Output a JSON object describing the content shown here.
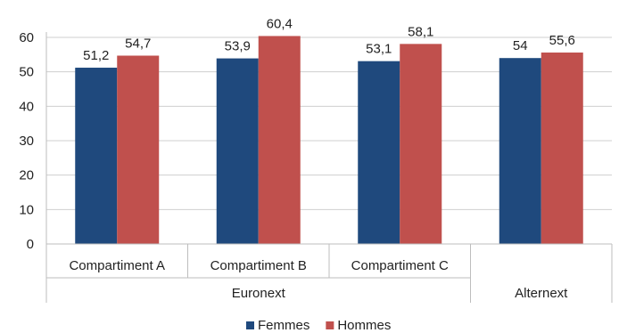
{
  "chart_data": {
    "type": "bar",
    "title": "",
    "xlabel": "",
    "ylabel": "",
    "ylim": [
      0,
      60
    ],
    "yticks": [
      0,
      10,
      20,
      30,
      40,
      50,
      60
    ],
    "grid": true,
    "legend_position": "bottom",
    "categories": [
      "Compartiment A",
      "Compartiment B",
      "Compartiment C",
      ""
    ],
    "groups": [
      {
        "label": "Euronext",
        "span": [
          0,
          2
        ]
      },
      {
        "label": "Alternext",
        "span": [
          3,
          3
        ]
      }
    ],
    "series": [
      {
        "name": "Femmes",
        "color": "#1f497d",
        "values": [
          51.2,
          53.9,
          53.1,
          54
        ],
        "labels": [
          "51,2",
          "53,9",
          "53,1",
          "54"
        ]
      },
      {
        "name": "Hommes",
        "color": "#c0504d",
        "values": [
          54.7,
          60.4,
          58.1,
          55.6
        ],
        "labels": [
          "54,7",
          "60,4",
          "58,1",
          "55,6"
        ]
      }
    ]
  }
}
